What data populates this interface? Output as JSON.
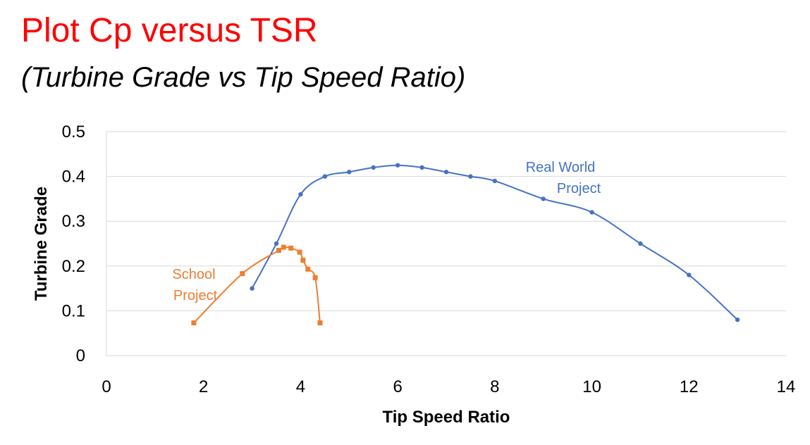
{
  "page": {
    "title": "Plot Cp versus TSR",
    "subtitle": "(Turbine Grade vs Tip Speed Ratio)"
  },
  "chart_data": {
    "type": "scatter",
    "title": "",
    "xlabel": "Tip Speed Ratio",
    "ylabel": "Turbine Grade",
    "xlim": [
      0,
      14
    ],
    "ylim": [
      0,
      0.5
    ],
    "xticks": [
      0,
      2,
      4,
      6,
      8,
      10,
      12,
      14
    ],
    "xtick_labels": [
      "0",
      "2",
      "4",
      "6",
      "8",
      "10",
      "12",
      "14"
    ],
    "yticks": [
      0,
      0.1,
      0.2,
      0.3,
      0.4,
      0.5
    ],
    "ytick_labels": [
      "0",
      "0.1",
      "0.2",
      "0.3",
      "0.4",
      "0.5"
    ],
    "grid": "horizontal",
    "smooth_lines": true,
    "series": [
      {
        "name": "Real World Project",
        "label_lines": [
          "Real World",
          "Project"
        ],
        "color": "#4472c4",
        "marker": "circle",
        "x": [
          3,
          3.5,
          4,
          4.5,
          5,
          5.5,
          6,
          6.5,
          7,
          7.5,
          8,
          9,
          10,
          11,
          12,
          13
        ],
        "y": [
          0.15,
          0.25,
          0.36,
          0.4,
          0.41,
          0.42,
          0.425,
          0.42,
          0.41,
          0.4,
          0.39,
          0.35,
          0.32,
          0.25,
          0.18,
          0.08
        ]
      },
      {
        "name": "School Project",
        "label_lines": [
          "School",
          "Project"
        ],
        "color": "#ed7d31",
        "marker": "square",
        "x": [
          1.8,
          2.8,
          3.55,
          3.65,
          3.8,
          3.98,
          4.05,
          4.15,
          4.3,
          4.4
        ],
        "y": [
          0.073,
          0.183,
          0.235,
          0.242,
          0.24,
          0.231,
          0.213,
          0.193,
          0.174,
          0.073
        ]
      }
    ]
  }
}
